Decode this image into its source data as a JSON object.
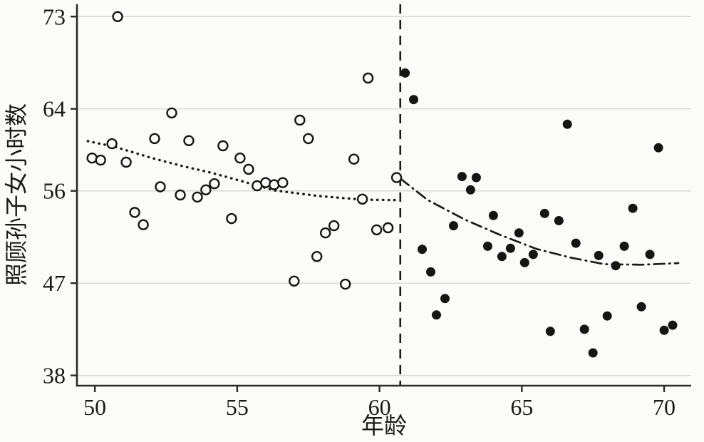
{
  "chart_data": {
    "type": "scatter",
    "title": "",
    "xlabel": "年龄",
    "ylabel": "照顾孙子女小时数",
    "x_ticks": [
      50,
      55,
      60,
      65,
      70
    ],
    "y_ticks": [
      73,
      64,
      56,
      47,
      38
    ],
    "xlim": [
      49.37,
      70.95
    ],
    "ylim": [
      37.0,
      74.2
    ],
    "grid": "horizontal-gridlines-only",
    "legend_position": "none",
    "cutoff_line": {
      "x": 60.73,
      "style": "vertical-dashed"
    },
    "series": [
      {
        "name": "pre_cutoff_bins",
        "type": "scatter",
        "marker": "open-circle",
        "points": [
          [
            50.8,
            73.0
          ],
          [
            59.6,
            67.0
          ],
          [
            52.7,
            63.6
          ],
          [
            57.2,
            62.9
          ],
          [
            52.1,
            61.1
          ],
          [
            57.5,
            61.1
          ],
          [
            53.3,
            60.9
          ],
          [
            50.6,
            60.6
          ],
          [
            54.5,
            60.4
          ],
          [
            49.9,
            59.2
          ],
          [
            50.2,
            59.0
          ],
          [
            55.1,
            59.2
          ],
          [
            51.1,
            58.8
          ],
          [
            55.4,
            58.1
          ],
          [
            59.1,
            59.1
          ],
          [
            60.6,
            57.3
          ],
          [
            52.3,
            56.4
          ],
          [
            53.0,
            55.6
          ],
          [
            53.6,
            55.4
          ],
          [
            53.9,
            56.1
          ],
          [
            54.2,
            56.7
          ],
          [
            55.7,
            56.5
          ],
          [
            56.0,
            56.8
          ],
          [
            56.3,
            56.6
          ],
          [
            56.6,
            56.8
          ],
          [
            59.4,
            55.2
          ],
          [
            51.4,
            53.9
          ],
          [
            51.7,
            52.7
          ],
          [
            54.8,
            53.3
          ],
          [
            58.4,
            52.6
          ],
          [
            58.1,
            51.9
          ],
          [
            59.9,
            52.2
          ],
          [
            60.3,
            52.4
          ],
          [
            57.8,
            49.6
          ],
          [
            57.0,
            47.2
          ],
          [
            58.8,
            46.9
          ]
        ]
      },
      {
        "name": "post_cutoff_bins",
        "type": "scatter",
        "marker": "filled-circle",
        "points": [
          [
            60.9,
            67.5
          ],
          [
            61.2,
            64.9
          ],
          [
            66.6,
            62.5
          ],
          [
            69.8,
            60.2
          ],
          [
            62.9,
            57.4
          ],
          [
            63.4,
            57.3
          ],
          [
            63.2,
            56.1
          ],
          [
            68.9,
            54.3
          ],
          [
            64.0,
            53.6
          ],
          [
            65.8,
            53.8
          ],
          [
            66.3,
            53.1
          ],
          [
            62.6,
            52.6
          ],
          [
            64.9,
            51.9
          ],
          [
            63.8,
            50.6
          ],
          [
            64.6,
            50.4
          ],
          [
            66.9,
            50.9
          ],
          [
            68.6,
            50.6
          ],
          [
            61.5,
            50.3
          ],
          [
            64.3,
            49.6
          ],
          [
            65.4,
            49.8
          ],
          [
            65.1,
            49.0
          ],
          [
            67.7,
            49.7
          ],
          [
            69.5,
            49.8
          ],
          [
            68.3,
            48.7
          ],
          [
            61.8,
            48.1
          ],
          [
            62.3,
            45.5
          ],
          [
            62.0,
            43.9
          ],
          [
            69.2,
            44.7
          ],
          [
            68.0,
            43.8
          ],
          [
            67.2,
            42.5
          ],
          [
            66.0,
            42.3
          ],
          [
            70.0,
            42.4
          ],
          [
            70.3,
            42.9
          ],
          [
            67.5,
            40.2
          ]
        ]
      },
      {
        "name": "pre_cutoff_fit",
        "type": "line",
        "style": "dotted",
        "points": [
          [
            49.75,
            60.85
          ],
          [
            50.7,
            60.3
          ],
          [
            52.0,
            59.2
          ],
          [
            53.1,
            58.4
          ],
          [
            54.05,
            57.8
          ],
          [
            55.1,
            57.0
          ],
          [
            56.3,
            56.05
          ],
          [
            57.85,
            55.5
          ],
          [
            59.4,
            55.15
          ],
          [
            60.65,
            55.1
          ]
        ]
      },
      {
        "name": "post_cutoff_fit",
        "type": "line",
        "style": "dash-dot",
        "points": [
          [
            60.73,
            57.2
          ],
          [
            61.7,
            55.1
          ],
          [
            63.0,
            53.2
          ],
          [
            64.2,
            51.75
          ],
          [
            65.5,
            50.35
          ],
          [
            66.7,
            49.5
          ],
          [
            67.9,
            48.85
          ],
          [
            69.2,
            48.8
          ],
          [
            70.5,
            48.95
          ]
        ]
      }
    ],
    "colors": {
      "marker": "#151515",
      "fit_line": "#1a1a1a",
      "axis": "#2b2b2b",
      "grid": "#d8d8d8",
      "background": "#fbfbf9",
      "open_marker_fill": "#fbfbf9"
    }
  }
}
